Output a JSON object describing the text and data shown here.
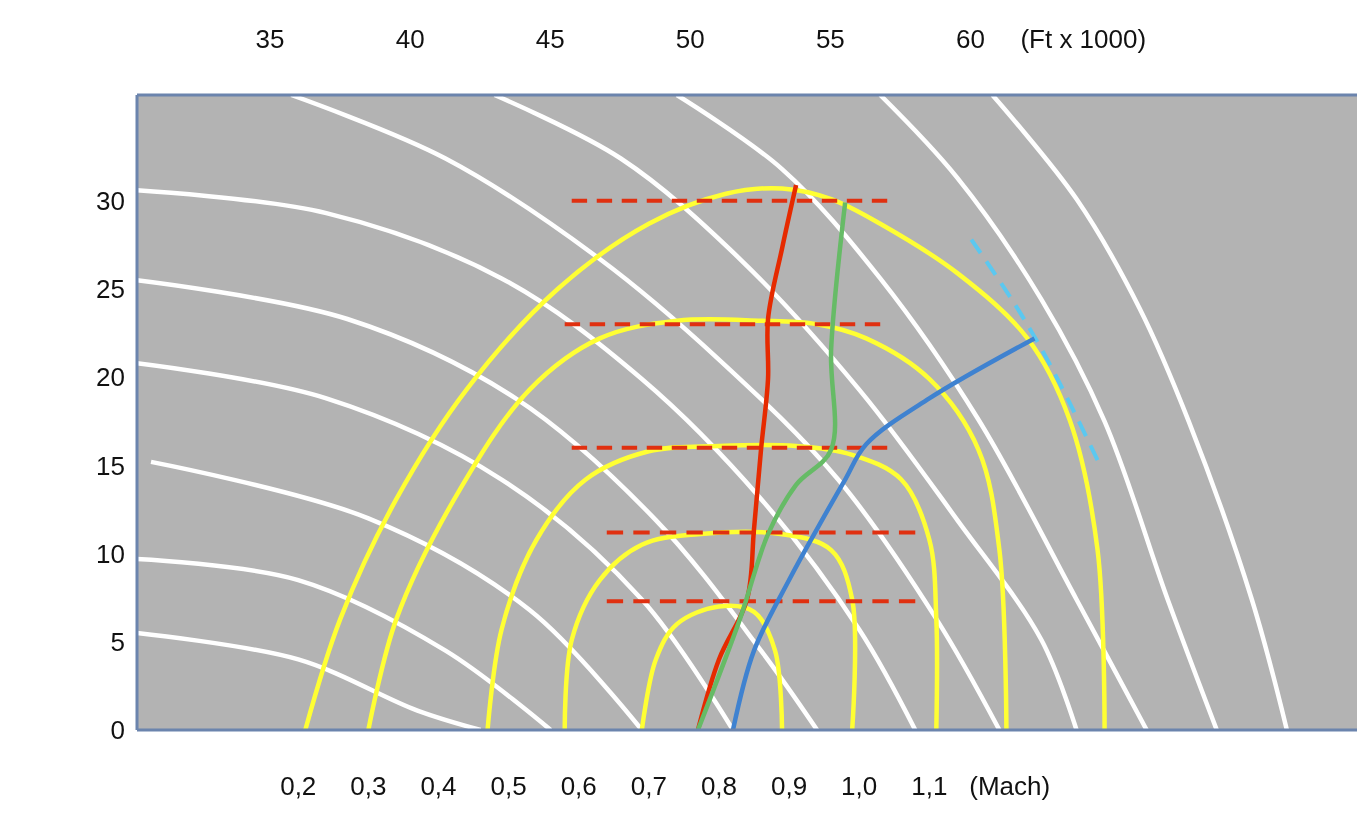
{
  "chart_data": {
    "type": "line",
    "xlabel": "(Mach)",
    "x2label": "(Ft x 1000)",
    "xlim": [
      -0.03,
      1.71
    ],
    "ylim": [
      0,
      36
    ],
    "x2lim": [
      30.25,
      73.8
    ],
    "xticks": [
      {
        "value": 0.2,
        "label": "0,2"
      },
      {
        "value": 0.3,
        "label": "0,3"
      },
      {
        "value": 0.4,
        "label": "0,4"
      },
      {
        "value": 0.5,
        "label": "0,5"
      },
      {
        "value": 0.6,
        "label": "0,6"
      },
      {
        "value": 0.7,
        "label": "0,7"
      },
      {
        "value": 0.8,
        "label": "0,8"
      },
      {
        "value": 0.9,
        "label": "0,9"
      },
      {
        "value": 1.0,
        "label": "1,0"
      },
      {
        "value": 1.1,
        "label": "1,1"
      }
    ],
    "x2ticks": [
      35,
      40,
      45,
      50,
      55,
      60
    ],
    "yticks": [
      0,
      5,
      10,
      15,
      20,
      25,
      30
    ],
    "grid": false,
    "series": [
      {
        "color": "#ffffff",
        "x": [
          -0.03,
          0.2,
          0.37,
          0.46
        ],
        "values": [
          5.5,
          4,
          1.1,
          0
        ]
      },
      {
        "color": "#ffffff",
        "x": [
          -0.03,
          0.2,
          0.41,
          0.56
        ],
        "values": [
          9.7,
          8.5,
          4.5,
          0
        ]
      },
      {
        "color": "#ffffff",
        "x": [
          -0.01,
          0.3,
          0.53,
          0.69
        ],
        "values": [
          15.2,
          12,
          6.8,
          0
        ]
      },
      {
        "color": "#ffffff",
        "x": [
          -0.03,
          0.24,
          0.49,
          0.69,
          0.82
        ],
        "values": [
          20.8,
          18.8,
          14.2,
          7.4,
          0
        ]
      },
      {
        "color": "#ffffff",
        "x": [
          -0.03,
          0.27,
          0.51,
          0.71,
          0.86,
          0.94
        ],
        "values": [
          25.5,
          23.3,
          18.8,
          11.9,
          4.5,
          0
        ]
      },
      {
        "color": "#ffffff",
        "x": [
          -0.03,
          0.24,
          0.49,
          0.69,
          0.86,
          1.0,
          1.08
        ],
        "values": [
          30.6,
          29.3,
          25.6,
          19.9,
          13.1,
          5.7,
          0
        ]
      },
      {
        "color": "#ffffff",
        "x": [
          0.19,
          0.41,
          0.63,
          0.8,
          0.97,
          1.11,
          1.2
        ],
        "values": [
          36,
          32.4,
          26.7,
          21,
          14.2,
          6.3,
          0
        ]
      },
      {
        "color": "#ffffff",
        "x": [
          0.48,
          0.66,
          0.83,
          1.0,
          1.14,
          1.26,
          1.31
        ],
        "values": [
          36,
          32.4,
          26.7,
          19.3,
          11.9,
          5.1,
          0
        ]
      },
      {
        "color": "#ffffff",
        "x": [
          0.74,
          0.89,
          1.03,
          1.17,
          1.31,
          1.41
        ],
        "values": [
          36,
          31.8,
          25.6,
          17.6,
          7.4,
          0
        ]
      },
      {
        "color": "#ffffff",
        "x": [
          1.03,
          1.14,
          1.26,
          1.35,
          1.44,
          1.51
        ],
        "values": [
          36,
          31.3,
          24.4,
          17.5,
          7.4,
          0
        ]
      },
      {
        "color": "#ffffff",
        "x": [
          1.19,
          1.31,
          1.4,
          1.47,
          1.56,
          1.61
        ],
        "values": [
          36,
          30.1,
          23.9,
          17.5,
          7.4,
          0
        ]
      },
      {
        "color": "#ffff33",
        "x": [
          0.21,
          0.26,
          0.34,
          0.44,
          0.57,
          0.7,
          0.81,
          0.89,
          0.96,
          1.03,
          1.14,
          1.24,
          1.3,
          1.34,
          1.35
        ],
        "values": [
          0,
          6.3,
          13.1,
          19.3,
          25,
          28.7,
          30.4,
          30.7,
          30.1,
          28.7,
          25.9,
          22.2,
          17.6,
          10.2,
          0
        ]
      },
      {
        "color": "#ffff33",
        "x": [
          0.3,
          0.34,
          0.43,
          0.53,
          0.63,
          0.74,
          0.86,
          0.94,
          1.01,
          1.1,
          1.17,
          1.2,
          1.21
        ],
        "values": [
          0,
          6.3,
          13.6,
          19.3,
          22.2,
          23.2,
          23.2,
          23,
          22.2,
          19.9,
          15.9,
          10.2,
          0
        ]
      },
      {
        "color": "#ffff33",
        "x": [
          0.47,
          0.49,
          0.54,
          0.61,
          0.7,
          0.8,
          0.91,
          0.99,
          1.06,
          1.1,
          1.11,
          1.11
        ],
        "values": [
          0,
          5.7,
          10.8,
          14.2,
          15.8,
          16.1,
          16.1,
          15.6,
          14.2,
          10.8,
          6.3,
          0
        ]
      },
      {
        "color": "#ffff33",
        "x": [
          0.58,
          0.59,
          0.63,
          0.69,
          0.77,
          0.89,
          0.96,
          0.99,
          0.99
        ],
        "values": [
          0,
          5.1,
          8.5,
          10.5,
          11.1,
          11.1,
          10.2,
          7.4,
          0
        ]
      },
      {
        "color": "#ffff33",
        "x": [
          0.69,
          0.71,
          0.74,
          0.8,
          0.85,
          0.88,
          0.89
        ],
        "values": [
          0,
          4,
          6,
          7,
          6.7,
          4.5,
          0
        ]
      },
      {
        "color": "#e03010",
        "line_style": "dashed",
        "x": [
          0.59,
          1.04
        ],
        "values": [
          30,
          30
        ]
      },
      {
        "color": "#e03010",
        "line_style": "dashed",
        "x": [
          0.58,
          1.03
        ],
        "values": [
          23,
          23
        ]
      },
      {
        "color": "#e03010",
        "line_style": "dashed",
        "x": [
          0.59,
          1.04
        ],
        "values": [
          16,
          16
        ]
      },
      {
        "color": "#e03010",
        "line_style": "dashed",
        "x": [
          0.64,
          1.08
        ],
        "values": [
          11.2,
          11.2
        ]
      },
      {
        "color": "#e03010",
        "line_style": "dashed",
        "x": [
          0.64,
          1.08
        ],
        "values": [
          7.3,
          7.3
        ]
      },
      {
        "color": "#5bc8f0",
        "line_style": "dashed",
        "x": [
          1.16,
          1.26,
          1.34
        ],
        "values": [
          27.8,
          21.6,
          15.3
        ]
      },
      {
        "color": "#e62a00",
        "x": [
          0.77,
          0.8,
          0.84,
          0.85,
          0.86,
          0.87,
          0.87,
          0.89,
          0.91
        ],
        "values": [
          0,
          4,
          7.4,
          11.4,
          15.9,
          19.9,
          23.3,
          27.3,
          30.9
        ]
      },
      {
        "color": "#66bb66",
        "x": [
          0.77,
          0.83,
          0.87,
          0.91,
          0.96,
          0.96,
          0.98
        ],
        "values": [
          0,
          6.3,
          11.1,
          13.9,
          15.9,
          21.6,
          29.9
        ]
      },
      {
        "color": "#3f82d0",
        "x": [
          0.82,
          0.85,
          0.9,
          0.94,
          0.98,
          1.01,
          1.1,
          1.25
        ],
        "values": [
          0,
          4.5,
          8.5,
          11.4,
          14.2,
          16.2,
          18.8,
          22.2
        ]
      }
    ]
  }
}
